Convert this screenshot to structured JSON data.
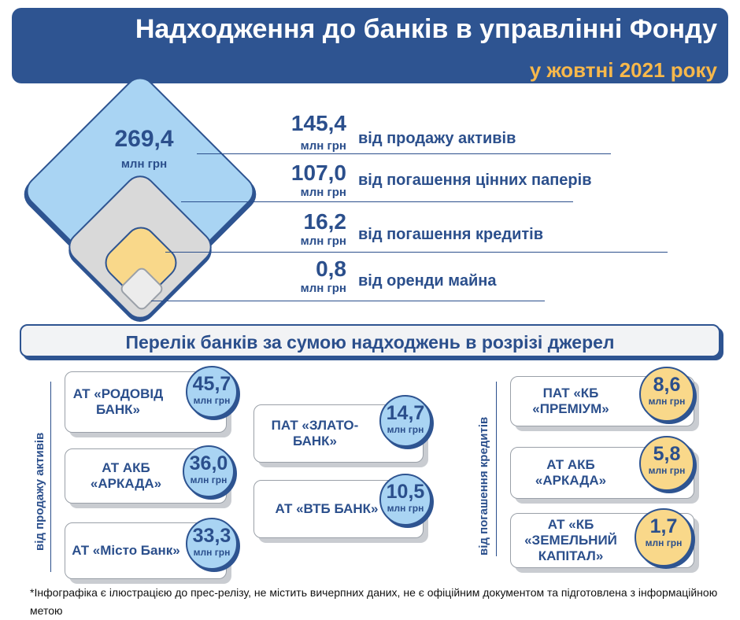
{
  "header": {
    "title": "Надходження до банків в управлінні Фонду",
    "subtitle": "у жовтні 2021 року"
  },
  "total": {
    "amount": "269,4",
    "unit": "млн грн"
  },
  "sources": [
    {
      "amount": "145,4",
      "unit": "млн грн",
      "label": "від продажу активів"
    },
    {
      "amount": "107,0",
      "unit": "млн грн",
      "label": "від погашення цінних паперів"
    },
    {
      "amount": "16,2",
      "unit": "млн грн",
      "label": "від погашення кредитів"
    },
    {
      "amount": "0,8",
      "unit": "млн грн",
      "label": "від оренди майна"
    }
  ],
  "banner": {
    "text": "Перелік банків за сумою надходжень в розрізі джерел"
  },
  "asset_sales": {
    "label": "від продажу активів",
    "banks": [
      {
        "name": "АТ «РОДОВІД БАНК»",
        "amount": "45,7",
        "unit": "млн грн"
      },
      {
        "name": "АТ АКБ «АРКАДА»",
        "amount": "36,0",
        "unit": "млн грн"
      },
      {
        "name": "АТ «Місто Банк»",
        "amount": "33,3",
        "unit": "млн грн"
      },
      {
        "name": "ПАТ «ЗЛАТО-БАНК»",
        "amount": "14,7",
        "unit": "млн грн"
      },
      {
        "name": "АТ «ВТБ БАНК»",
        "amount": "10,5",
        "unit": "млн грн"
      }
    ]
  },
  "loan_repayment": {
    "label": "від погашення кредитів",
    "banks": [
      {
        "name": "ПАТ «КБ «ПРЕМІУМ»",
        "amount": "8,6",
        "unit": "млн грн"
      },
      {
        "name": "АТ АКБ «АРКАДА»",
        "amount": "5,8",
        "unit": "млн грн"
      },
      {
        "name": "АТ «КБ «ЗЕМЕЛЬНИЙ КАПІТАЛ»",
        "amount": "1,7",
        "unit": "млн грн"
      }
    ]
  },
  "colors": {
    "navy": "#2e5491",
    "accent_orange": "#f7b84b",
    "light_blue": "#a9d4f3",
    "light_yellow": "#f9d88a",
    "light_grey": "#d9d9d9"
  },
  "footnote": "*Інфографіка є ілюстрацією до прес-релізу, не містить вичерпних даних, не є офіційним документом та підготовлена з інформаційною метою"
}
